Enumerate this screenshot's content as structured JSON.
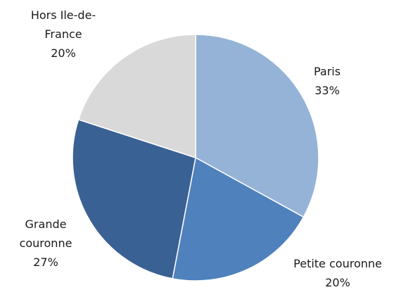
{
  "chart_data": {
    "type": "pie",
    "categories": [
      "Paris",
      "Petite couronne",
      "Grande couronne",
      "Hors Ile-de-France"
    ],
    "values": [
      33,
      20,
      27,
      20
    ],
    "value_labels": [
      "33%",
      "20%",
      "27%",
      "20%"
    ],
    "colors": [
      "#95b3d7",
      "#4f81bd",
      "#3a6194",
      "#d9d9d9"
    ]
  }
}
